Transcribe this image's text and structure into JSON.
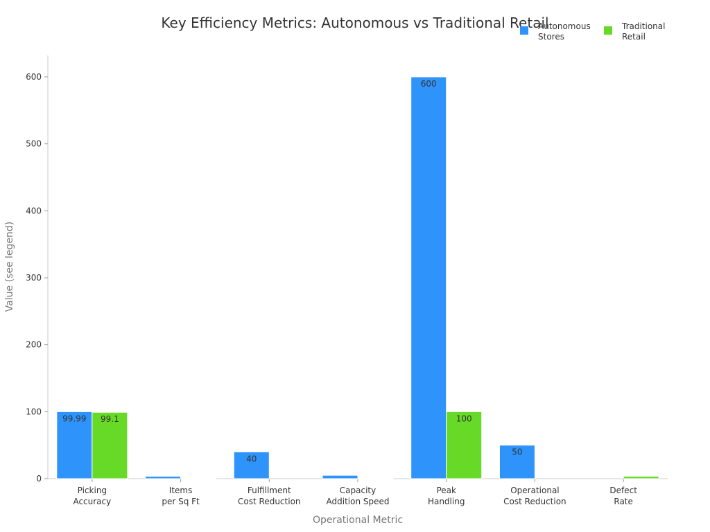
{
  "chart_data": {
    "type": "bar",
    "title": "Key Efficiency Metrics: Autonomous vs Traditional Retail",
    "xlabel": "Operational Metric",
    "ylabel": "Value (see legend)",
    "ylim": [
      0,
      630
    ],
    "yticks": [
      0,
      100,
      200,
      300,
      400,
      500,
      600
    ],
    "grid": false,
    "legend": "top-right",
    "categories": [
      [
        "Picking",
        "Accuracy"
      ],
      [
        "Items",
        "per Sq Ft"
      ],
      [
        "Fulfillment",
        "Cost Reduction"
      ],
      [
        "Capacity",
        "Addition Speed"
      ],
      [
        "Peak",
        "Handling"
      ],
      [
        "Operational",
        "Cost Reduction"
      ],
      [
        "Defect",
        "Rate"
      ]
    ],
    "series": [
      {
        "name": "Autonomous Stores",
        "legend_lines": [
          "Autonomous",
          "Stores"
        ],
        "color": "#2e93fa",
        "values": [
          99.99,
          3.5,
          40,
          5,
          600,
          50,
          null
        ],
        "labels": [
          "99.99",
          "3.5",
          "40",
          "5",
          "600",
          "50",
          ""
        ]
      },
      {
        "name": "Traditional Retail",
        "legend_lines": [
          "Traditional",
          "Retail"
        ],
        "color": "#66da26",
        "values": [
          99.1,
          1,
          null,
          1,
          100,
          null,
          3.5
        ],
        "labels": [
          "99.1",
          "1",
          "",
          "1",
          "100",
          "",
          "3.5"
        ]
      }
    ]
  }
}
